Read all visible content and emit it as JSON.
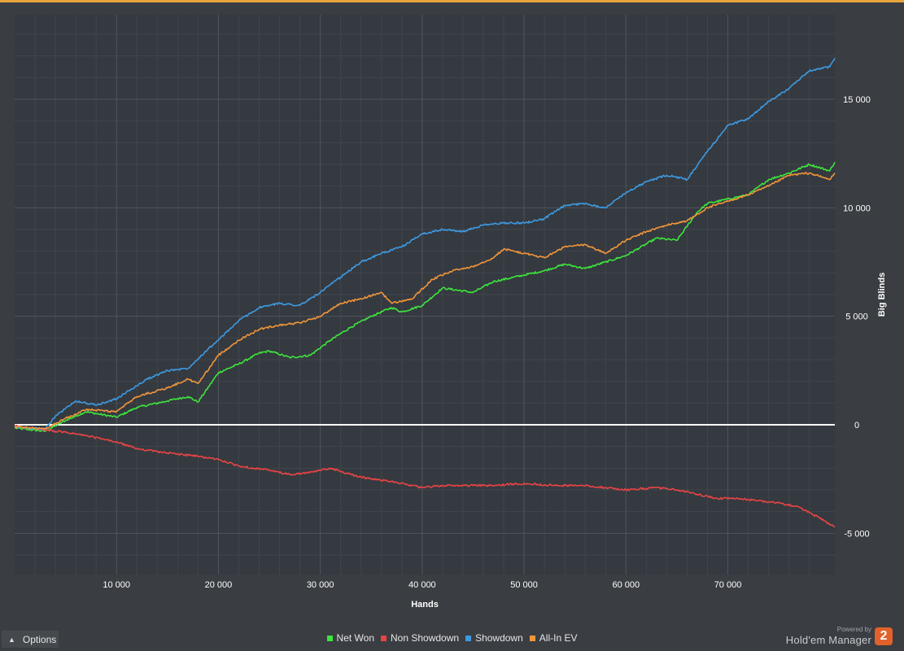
{
  "chart_data": {
    "type": "line",
    "xlabel": "Hands",
    "ylabel": "Big Blinds",
    "xlim": [
      0,
      80500
    ],
    "ylim": [
      -6900,
      18900
    ],
    "x_ticks": [
      10000,
      20000,
      30000,
      40000,
      50000,
      60000,
      70000
    ],
    "x_tick_labels": [
      "10 000",
      "20 000",
      "30 000",
      "40 000",
      "50 000",
      "60 000",
      "70 000"
    ],
    "y_ticks": [
      -5000,
      0,
      5000,
      10000,
      15000
    ],
    "y_tick_labels": [
      "-5 000",
      "0",
      "5 000",
      "10 000",
      "15 000"
    ],
    "grid": true,
    "legend_position": "bottom-center",
    "series": [
      {
        "name": "Net Won",
        "color": "#3ce63c",
        "x": [
          0,
          3000,
          5000,
          7000,
          10000,
          12000,
          15000,
          17000,
          18000,
          20000,
          22000,
          24000,
          25000,
          27000,
          29000,
          31000,
          33000,
          35000,
          37000,
          38000,
          40000,
          42000,
          45000,
          47000,
          50000,
          52000,
          54000,
          56000,
          58000,
          60000,
          63000,
          65000,
          67000,
          68000,
          70000,
          72000,
          74000,
          76000,
          78000,
          80000,
          80500
        ],
        "values": [
          -150,
          -300,
          200,
          600,
          350,
          800,
          1100,
          1300,
          1050,
          2400,
          2800,
          3300,
          3400,
          3100,
          3200,
          3900,
          4500,
          5000,
          5400,
          5200,
          5500,
          6300,
          6100,
          6600,
          6900,
          7100,
          7400,
          7200,
          7500,
          7800,
          8600,
          8500,
          9800,
          10200,
          10400,
          10600,
          11300,
          11600,
          12000,
          11700,
          12100
        ]
      },
      {
        "name": "Non Showdown",
        "color": "#e84444",
        "x": [
          0,
          3000,
          5000,
          7000,
          10000,
          12000,
          15000,
          18000,
          20000,
          22000,
          25000,
          27000,
          29000,
          31000,
          33000,
          35000,
          37000,
          39000,
          40000,
          42000,
          45000,
          47000,
          50000,
          53000,
          56000,
          58000,
          60000,
          63000,
          65000,
          67000,
          69000,
          71000,
          73000,
          75000,
          77000,
          79000,
          80500
        ],
        "values": [
          -50,
          -250,
          -350,
          -500,
          -800,
          -1100,
          -1300,
          -1450,
          -1600,
          -1900,
          -2100,
          -2300,
          -2200,
          -2000,
          -2300,
          -2500,
          -2600,
          -2800,
          -2900,
          -2800,
          -2800,
          -2800,
          -2700,
          -2800,
          -2800,
          -2900,
          -3000,
          -2900,
          -3000,
          -3200,
          -3400,
          -3400,
          -3500,
          -3600,
          -3800,
          -4300,
          -4700
        ]
      },
      {
        "name": "Showdown",
        "color": "#3d9ae0",
        "x": [
          0,
          3000,
          4000,
          6000,
          8000,
          10000,
          13000,
          15000,
          17000,
          19000,
          20000,
          22000,
          24000,
          26000,
          28000,
          30000,
          32000,
          34000,
          36000,
          38000,
          40000,
          42000,
          44000,
          46000,
          48000,
          50000,
          52000,
          54000,
          56000,
          58000,
          60000,
          62000,
          64000,
          66000,
          68000,
          70000,
          72000,
          74000,
          76000,
          78000,
          80000,
          80500
        ],
        "values": [
          -100,
          -200,
          400,
          1100,
          900,
          1200,
          2100,
          2500,
          2600,
          3500,
          3900,
          4800,
          5400,
          5600,
          5500,
          6100,
          6800,
          7500,
          7900,
          8200,
          8800,
          9000,
          8900,
          9200,
          9300,
          9300,
          9500,
          10100,
          10200,
          10000,
          10700,
          11200,
          11500,
          11300,
          12600,
          13800,
          14100,
          14900,
          15500,
          16300,
          16500,
          16900
        ]
      },
      {
        "name": "All-In EV",
        "color": "#f0953a",
        "x": [
          0,
          3000,
          5000,
          7000,
          10000,
          12000,
          15000,
          17000,
          18000,
          20000,
          22000,
          24000,
          26000,
          28000,
          30000,
          32000,
          34000,
          36000,
          37000,
          39000,
          41000,
          43000,
          45000,
          47000,
          48000,
          50000,
          52000,
          54000,
          56000,
          58000,
          60000,
          62000,
          64000,
          66000,
          68000,
          70000,
          72000,
          74000,
          76000,
          78000,
          80000,
          80500
        ],
        "values": [
          -100,
          -200,
          300,
          700,
          600,
          1300,
          1700,
          2100,
          1900,
          3200,
          3900,
          4400,
          4600,
          4700,
          5000,
          5600,
          5800,
          6100,
          5600,
          5800,
          6700,
          7100,
          7300,
          7700,
          8100,
          7900,
          7700,
          8200,
          8300,
          7900,
          8500,
          8900,
          9200,
          9400,
          10000,
          10300,
          10600,
          11000,
          11500,
          11600,
          11300,
          11600
        ]
      }
    ]
  },
  "ui": {
    "options_label": "Options",
    "powered_by": "Powered by",
    "product_name": "Hold'em Manager",
    "logo_digit": "2"
  },
  "colors": {
    "accent": "#e8a33a",
    "background": "#3a3d42",
    "plot_background": "#353940",
    "zero_line": "#ffffff"
  }
}
